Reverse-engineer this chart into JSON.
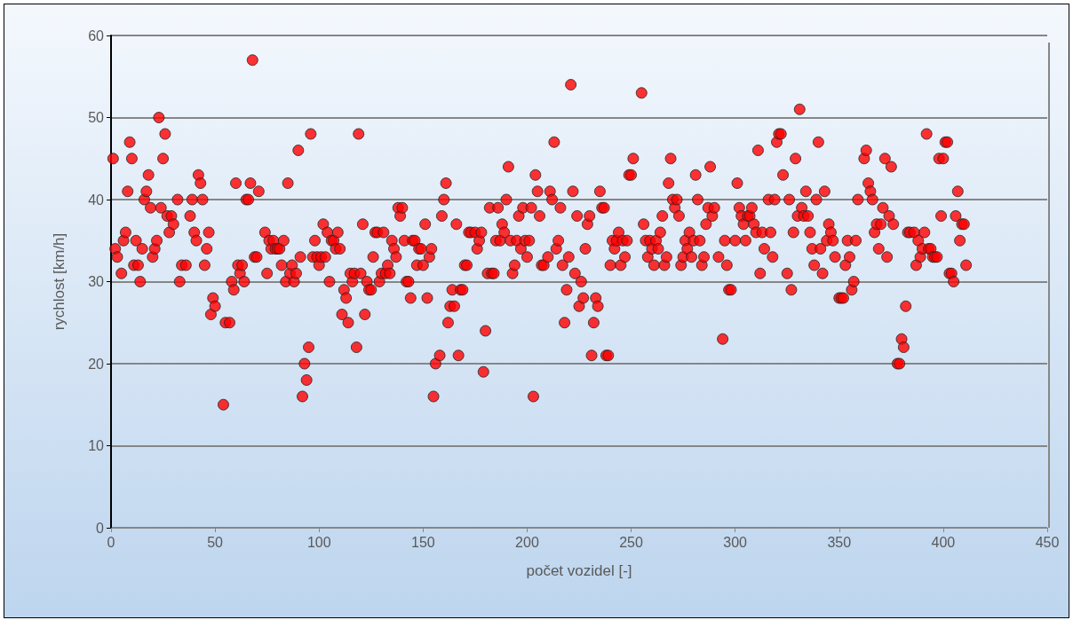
{
  "chart_data": {
    "type": "scatter",
    "xlabel": "počet vozidel [-]",
    "ylabel": "rychlost [km/h]",
    "x": [
      1,
      2,
      3,
      5,
      6,
      7,
      8,
      9,
      10,
      11,
      12,
      13,
      14,
      15,
      16,
      17,
      18,
      19,
      20,
      21,
      22,
      23,
      24,
      25,
      26,
      27,
      28,
      29,
      30,
      32,
      33,
      34,
      36,
      38,
      39,
      40,
      41,
      42,
      43,
      44,
      45,
      46,
      47,
      48,
      49,
      50,
      54,
      55,
      57,
      58,
      59,
      60,
      61,
      62,
      63,
      64,
      65,
      66,
      67,
      68,
      69,
      70,
      71,
      74,
      75,
      76,
      77,
      78,
      79,
      80,
      81,
      82,
      83,
      84,
      85,
      86,
      87,
      88,
      89,
      90,
      91,
      92,
      93,
      94,
      95,
      96,
      97,
      98,
      99,
      100,
      101,
      102,
      103,
      104,
      105,
      106,
      107,
      108,
      109,
      110,
      111,
      112,
      113,
      114,
      115,
      116,
      117,
      118,
      119,
      120,
      121,
      122,
      123,
      124,
      125,
      126,
      127,
      128,
      129,
      130,
      131,
      132,
      133,
      134,
      135,
      136,
      137,
      138,
      139,
      140,
      141,
      142,
      143,
      144,
      145,
      146,
      147,
      148,
      149,
      150,
      151,
      152,
      153,
      154,
      155,
      156,
      158,
      159,
      160,
      161,
      162,
      163,
      164,
      165,
      166,
      167,
      168,
      169,
      170,
      171,
      172,
      173,
      175,
      176,
      177,
      178,
      179,
      180,
      181,
      182,
      183,
      184,
      185,
      186,
      187,
      188,
      189,
      190,
      191,
      192,
      193,
      194,
      195,
      196,
      197,
      198,
      199,
      200,
      201,
      202,
      203,
      204,
      205,
      206,
      207,
      208,
      210,
      211,
      212,
      213,
      214,
      215,
      216,
      217,
      218,
      219,
      220,
      221,
      222,
      223,
      224,
      225,
      226,
      227,
      228,
      229,
      230,
      231,
      232,
      233,
      234,
      235,
      236,
      237,
      238,
      239,
      240,
      241,
      242,
      243,
      244,
      245,
      246,
      247,
      248,
      249,
      250,
      251,
      255,
      256,
      257,
      258,
      259,
      260,
      261,
      262,
      263,
      264,
      265,
      266,
      267,
      268,
      269,
      270,
      271,
      272,
      273,
      274,
      275,
      276,
      277,
      278,
      279,
      280,
      281,
      282,
      283,
      284,
      285,
      286,
      287,
      288,
      289,
      290,
      292,
      294,
      295,
      296,
      297,
      298,
      300,
      301,
      302,
      303,
      304,
      305,
      306,
      307,
      308,
      309,
      310,
      311,
      312,
      313,
      314,
      316,
      317,
      318,
      319,
      320,
      321,
      322,
      323,
      325,
      326,
      327,
      328,
      329,
      330,
      331,
      332,
      333,
      334,
      335,
      336,
      337,
      338,
      339,
      340,
      341,
      342,
      343,
      344,
      345,
      346,
      347,
      348,
      350,
      351,
      352,
      353,
      354,
      355,
      356,
      357,
      358,
      359,
      362,
      363,
      364,
      365,
      366,
      367,
      368,
      369,
      370,
      371,
      372,
      373,
      374,
      375,
      376,
      378,
      379,
      380,
      381,
      382,
      383,
      384,
      386,
      387,
      388,
      389,
      390,
      391,
      392,
      393,
      394,
      395,
      396,
      397,
      398,
      399,
      400,
      401,
      402,
      403,
      404,
      405,
      406,
      407,
      408,
      409,
      410,
      411
    ],
    "series": [
      {
        "color": "#ff0000",
        "values": [
          45,
          34,
          33,
          31,
          35,
          36,
          41,
          47,
          45,
          32,
          35,
          32,
          30,
          34,
          40,
          41,
          43,
          39,
          33,
          34,
          35,
          50,
          39,
          45,
          48,
          38,
          36,
          38,
          37,
          40,
          30,
          32,
          32,
          38,
          40,
          36,
          35,
          43,
          42,
          40,
          32,
          34,
          36,
          26,
          28,
          27,
          15,
          25,
          25,
          30,
          29,
          42,
          32,
          31,
          32,
          30,
          40,
          40,
          42,
          57,
          33,
          33,
          41,
          36,
          31,
          35,
          34,
          35,
          34,
          34,
          34,
          32,
          35,
          30,
          42,
          31,
          32,
          30,
          31,
          46,
          33,
          16,
          20,
          18,
          22,
          48,
          33,
          35,
          33,
          32,
          33,
          37,
          33,
          36,
          30,
          35,
          35,
          34,
          36,
          34,
          26,
          29,
          28,
          25,
          31,
          30,
          31,
          22,
          48,
          31,
          37,
          26,
          30,
          29,
          29,
          33,
          36,
          36,
          30,
          31,
          36,
          31,
          32,
          31,
          35,
          34,
          33,
          39,
          38,
          39,
          35,
          30,
          30,
          28,
          35,
          35,
          32,
          34,
          34,
          32,
          37,
          28,
          33,
          34,
          16,
          20,
          21,
          38,
          40,
          42,
          25,
          27,
          29,
          27,
          37,
          21,
          29,
          29,
          32,
          32,
          36,
          36,
          36,
          34,
          35,
          36,
          19,
          24,
          31,
          39,
          31,
          31,
          35,
          39,
          35,
          37,
          36,
          40,
          44,
          35,
          31,
          32,
          35,
          38,
          34,
          39,
          35,
          33,
          35,
          39,
          16,
          43,
          41,
          38,
          32,
          32,
          33,
          41,
          40,
          47,
          34,
          35,
          39,
          32,
          25,
          29,
          33,
          54,
          41,
          31,
          38,
          27,
          30,
          28,
          34,
          37,
          38,
          21,
          25,
          28,
          27,
          41,
          39,
          39,
          21,
          21,
          32,
          35,
          34,
          35,
          36,
          32,
          35,
          33,
          35,
          43,
          43,
          45,
          53,
          37,
          35,
          33,
          35,
          34,
          32,
          35,
          34,
          36,
          38,
          32,
          33,
          42,
          45,
          40,
          39,
          40,
          38,
          32,
          33,
          35,
          34,
          36,
          33,
          35,
          43,
          40,
          35,
          32,
          33,
          37,
          39,
          44,
          38,
          39,
          33,
          23,
          35,
          32,
          29,
          29,
          35,
          42,
          39,
          38,
          37,
          35,
          38,
          38,
          39,
          37,
          36,
          46,
          31,
          36,
          34,
          40,
          36,
          33,
          40,
          47,
          48,
          48,
          43,
          31,
          40,
          29,
          36,
          45,
          38,
          51,
          39,
          38,
          41,
          38,
          36,
          34,
          32,
          40,
          47,
          34,
          31,
          41,
          35,
          37,
          36,
          35,
          33,
          28,
          28,
          28,
          32,
          35,
          33,
          29,
          30,
          35,
          40,
          45,
          46,
          42,
          41,
          40,
          36,
          37,
          34,
          37,
          39,
          45,
          33,
          38,
          44,
          37,
          20,
          20,
          23,
          22,
          27,
          36,
          36,
          36,
          32,
          35,
          33,
          34,
          36,
          48,
          34,
          34,
          33,
          33,
          33,
          45,
          38,
          45,
          47,
          47,
          31,
          31,
          30,
          38,
          41,
          35,
          37,
          37,
          32
        ]
      }
    ],
    "xlim": [
      0,
      450
    ],
    "xticks": [
      0,
      50,
      100,
      150,
      200,
      250,
      300,
      350,
      400,
      450
    ],
    "ylim": [
      0,
      60
    ],
    "yticks": [
      0,
      10,
      20,
      30,
      40,
      50,
      60
    ],
    "grid": "y",
    "marker": "circle"
  }
}
